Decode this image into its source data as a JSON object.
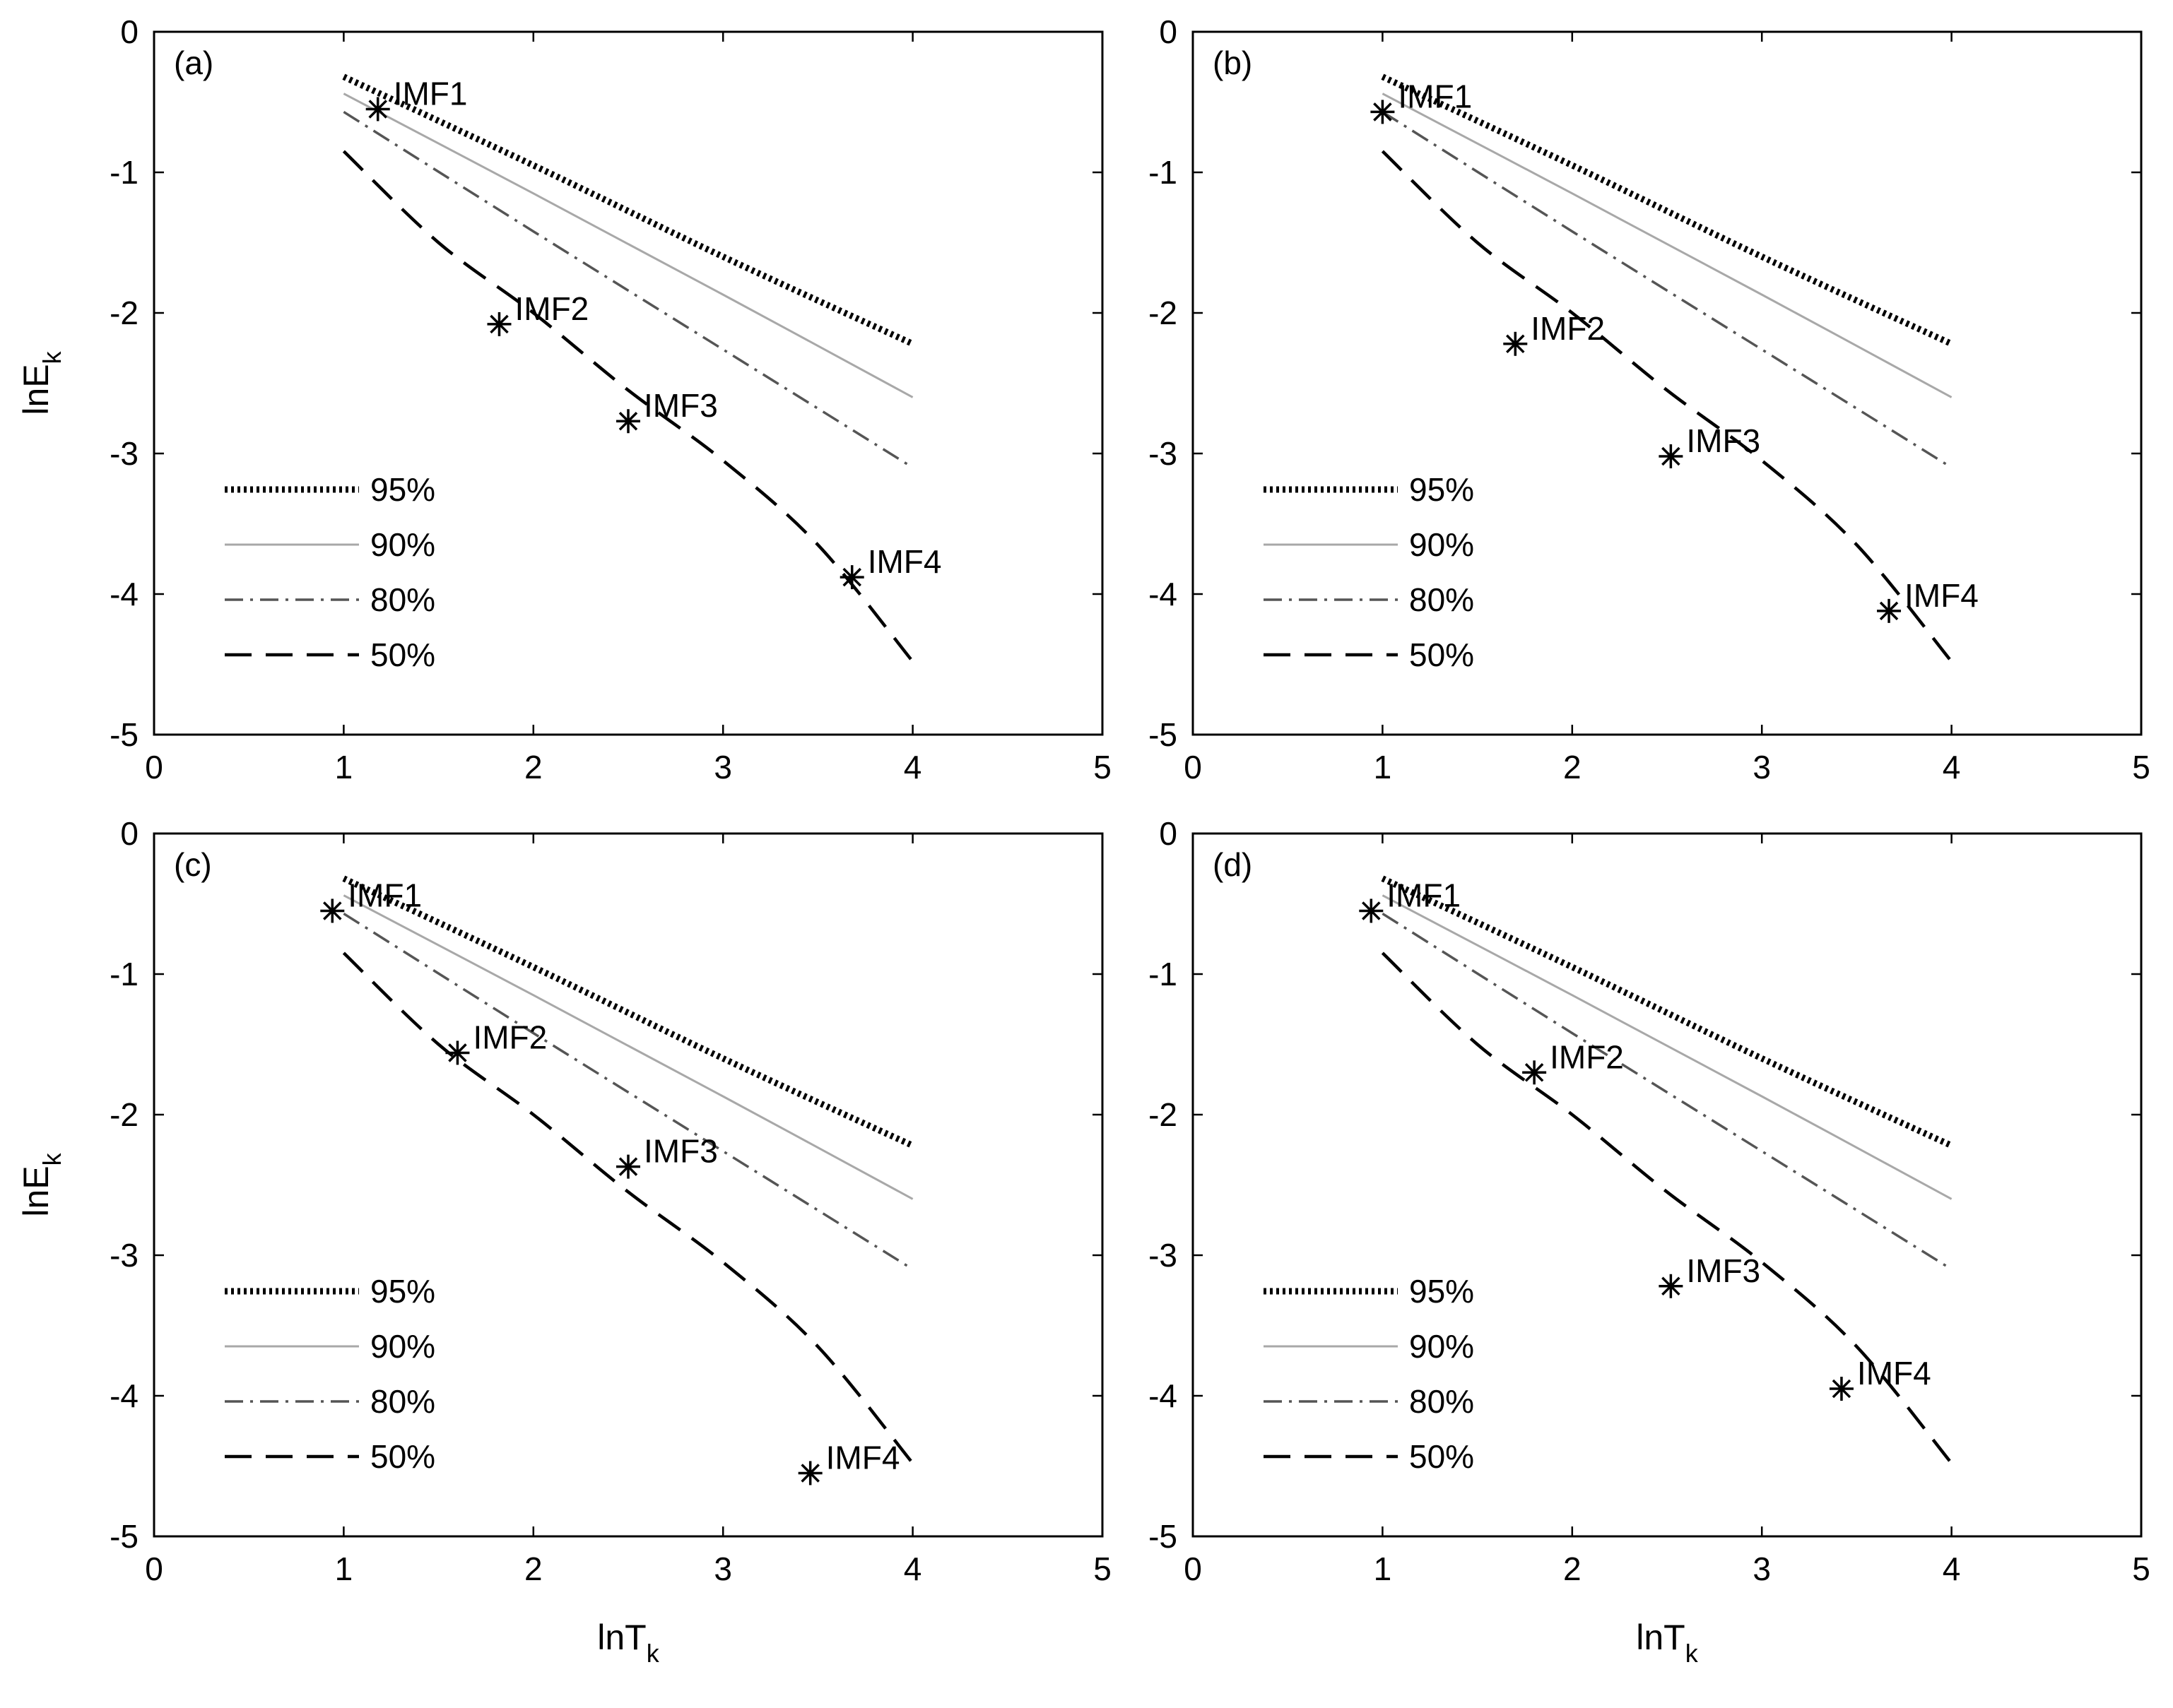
{
  "chart_data": [
    {
      "type": "line",
      "panel_label": "(a)",
      "xlim": [
        0,
        5
      ],
      "ylim": [
        -5,
        0
      ],
      "xticks": [
        0,
        1,
        2,
        3,
        4,
        5
      ],
      "yticks": [
        0,
        -1,
        -2,
        -3,
        -4,
        -5
      ],
      "ylabel": "lnE",
      "ylabel_sub": "k",
      "xlabel": "",
      "xlabel_sub": "",
      "series": [
        {
          "name": "95%",
          "style": "dotted-bold",
          "points": [
            [
              1.0,
              -0.32
            ],
            [
              2.0,
              -0.95
            ],
            [
              3.0,
              -1.6
            ],
            [
              4.0,
              -2.22
            ]
          ]
        },
        {
          "name": "90%",
          "style": "solid-light",
          "points": [
            [
              1.0,
              -0.44
            ],
            [
              2.0,
              -1.15
            ],
            [
              3.0,
              -1.87
            ],
            [
              4.0,
              -2.6
            ]
          ]
        },
        {
          "name": "80%",
          "style": "dash-dot",
          "points": [
            [
              1.0,
              -0.57
            ],
            [
              2.0,
              -1.42
            ],
            [
              3.0,
              -2.26
            ],
            [
              4.0,
              -3.1
            ]
          ]
        },
        {
          "name": "50%",
          "style": "dashed",
          "points": [
            [
              1.0,
              -0.85
            ],
            [
              1.5,
              -1.5
            ],
            [
              2.0,
              -2.0
            ],
            [
              2.5,
              -2.55
            ],
            [
              3.0,
              -3.05
            ],
            [
              3.5,
              -3.65
            ],
            [
              4.0,
              -4.48
            ]
          ]
        }
      ],
      "markers": [
        {
          "label": "IMF1",
          "x": 1.18,
          "y": -0.55
        },
        {
          "label": "IMF2",
          "x": 1.82,
          "y": -2.08
        },
        {
          "label": "IMF3",
          "x": 2.5,
          "y": -2.77
        },
        {
          "label": "IMF4",
          "x": 3.68,
          "y": -3.88
        }
      ],
      "legend": [
        "95%",
        "90%",
        "80%",
        "50%"
      ],
      "legend_placement": "lower-left"
    },
    {
      "type": "line",
      "panel_label": "(b)",
      "xlim": [
        0,
        5
      ],
      "ylim": [
        -5,
        0
      ],
      "xticks": [
        0,
        1,
        2,
        3,
        4,
        5
      ],
      "yticks": [
        0,
        -1,
        -2,
        -3,
        -4,
        -5
      ],
      "ylabel": "",
      "ylabel_sub": "",
      "xlabel": "",
      "xlabel_sub": "",
      "series": [
        {
          "name": "95%",
          "style": "dotted-bold",
          "points": [
            [
              1.0,
              -0.32
            ],
            [
              2.0,
              -0.95
            ],
            [
              3.0,
              -1.6
            ],
            [
              4.0,
              -2.22
            ]
          ]
        },
        {
          "name": "90%",
          "style": "solid-light",
          "points": [
            [
              1.0,
              -0.44
            ],
            [
              2.0,
              -1.15
            ],
            [
              3.0,
              -1.87
            ],
            [
              4.0,
              -2.6
            ]
          ]
        },
        {
          "name": "80%",
          "style": "dash-dot",
          "points": [
            [
              1.0,
              -0.57
            ],
            [
              2.0,
              -1.42
            ],
            [
              3.0,
              -2.26
            ],
            [
              4.0,
              -3.1
            ]
          ]
        },
        {
          "name": "50%",
          "style": "dashed",
          "points": [
            [
              1.0,
              -0.85
            ],
            [
              1.5,
              -1.5
            ],
            [
              2.0,
              -2.0
            ],
            [
              2.5,
              -2.55
            ],
            [
              3.0,
              -3.05
            ],
            [
              3.5,
              -3.65
            ],
            [
              4.0,
              -4.48
            ]
          ]
        }
      ],
      "markers": [
        {
          "label": "IMF1",
          "x": 1.0,
          "y": -0.57
        },
        {
          "label": "IMF2",
          "x": 1.7,
          "y": -2.22
        },
        {
          "label": "IMF3",
          "x": 2.52,
          "y": -3.02
        },
        {
          "label": "IMF4",
          "x": 3.67,
          "y": -4.12
        }
      ],
      "legend": [
        "95%",
        "90%",
        "80%",
        "50%"
      ],
      "legend_placement": "lower-left"
    },
    {
      "type": "line",
      "panel_label": "(c)",
      "xlim": [
        0,
        5
      ],
      "ylim": [
        -5,
        0
      ],
      "xticks": [
        0,
        1,
        2,
        3,
        4,
        5
      ],
      "yticks": [
        0,
        -1,
        -2,
        -3,
        -4,
        -5
      ],
      "ylabel": "lnE",
      "ylabel_sub": "k",
      "xlabel": "lnT",
      "xlabel_sub": "k",
      "series": [
        {
          "name": "95%",
          "style": "dotted-bold",
          "points": [
            [
              1.0,
              -0.32
            ],
            [
              2.0,
              -0.95
            ],
            [
              3.0,
              -1.6
            ],
            [
              4.0,
              -2.22
            ]
          ]
        },
        {
          "name": "90%",
          "style": "solid-light",
          "points": [
            [
              1.0,
              -0.44
            ],
            [
              2.0,
              -1.15
            ],
            [
              3.0,
              -1.87
            ],
            [
              4.0,
              -2.6
            ]
          ]
        },
        {
          "name": "80%",
          "style": "dash-dot",
          "points": [
            [
              1.0,
              -0.57
            ],
            [
              2.0,
              -1.42
            ],
            [
              3.0,
              -2.26
            ],
            [
              4.0,
              -3.1
            ]
          ]
        },
        {
          "name": "50%",
          "style": "dashed",
          "points": [
            [
              1.0,
              -0.85
            ],
            [
              1.5,
              -1.5
            ],
            [
              2.0,
              -2.0
            ],
            [
              2.5,
              -2.55
            ],
            [
              3.0,
              -3.05
            ],
            [
              3.5,
              -3.65
            ],
            [
              4.0,
              -4.48
            ]
          ]
        }
      ],
      "markers": [
        {
          "label": "IMF1",
          "x": 0.94,
          "y": -0.55
        },
        {
          "label": "IMF2",
          "x": 1.6,
          "y": -1.56
        },
        {
          "label": "IMF3",
          "x": 2.5,
          "y": -2.37
        },
        {
          "label": "IMF4",
          "x": 3.46,
          "y": -4.55
        }
      ],
      "legend": [
        "95%",
        "90%",
        "80%",
        "50%"
      ],
      "legend_placement": "lower-left"
    },
    {
      "type": "line",
      "panel_label": "(d)",
      "xlim": [
        0,
        5
      ],
      "ylim": [
        -5,
        0
      ],
      "xticks": [
        0,
        1,
        2,
        3,
        4,
        5
      ],
      "yticks": [
        0,
        -1,
        -2,
        -3,
        -4,
        -5
      ],
      "ylabel": "",
      "ylabel_sub": "",
      "xlabel": "lnT",
      "xlabel_sub": "k",
      "series": [
        {
          "name": "95%",
          "style": "dotted-bold",
          "points": [
            [
              1.0,
              -0.32
            ],
            [
              2.0,
              -0.95
            ],
            [
              3.0,
              -1.6
            ],
            [
              4.0,
              -2.22
            ]
          ]
        },
        {
          "name": "90%",
          "style": "solid-light",
          "points": [
            [
              1.0,
              -0.44
            ],
            [
              2.0,
              -1.15
            ],
            [
              3.0,
              -1.87
            ],
            [
              4.0,
              -2.6
            ]
          ]
        },
        {
          "name": "80%",
          "style": "dash-dot",
          "points": [
            [
              1.0,
              -0.57
            ],
            [
              2.0,
              -1.42
            ],
            [
              3.0,
              -2.26
            ],
            [
              4.0,
              -3.1
            ]
          ]
        },
        {
          "name": "50%",
          "style": "dashed",
          "points": [
            [
              1.0,
              -0.85
            ],
            [
              1.5,
              -1.5
            ],
            [
              2.0,
              -2.0
            ],
            [
              2.5,
              -2.55
            ],
            [
              3.0,
              -3.05
            ],
            [
              3.5,
              -3.65
            ],
            [
              4.0,
              -4.48
            ]
          ]
        }
      ],
      "markers": [
        {
          "label": "IMF1",
          "x": 0.94,
          "y": -0.55
        },
        {
          "label": "IMF2",
          "x": 1.8,
          "y": -1.7
        },
        {
          "label": "IMF3",
          "x": 2.52,
          "y": -3.22
        },
        {
          "label": "IMF4",
          "x": 3.42,
          "y": -3.95
        }
      ],
      "legend": [
        "95%",
        "90%",
        "80%",
        "50%"
      ],
      "legend_placement": "lower-left"
    }
  ]
}
